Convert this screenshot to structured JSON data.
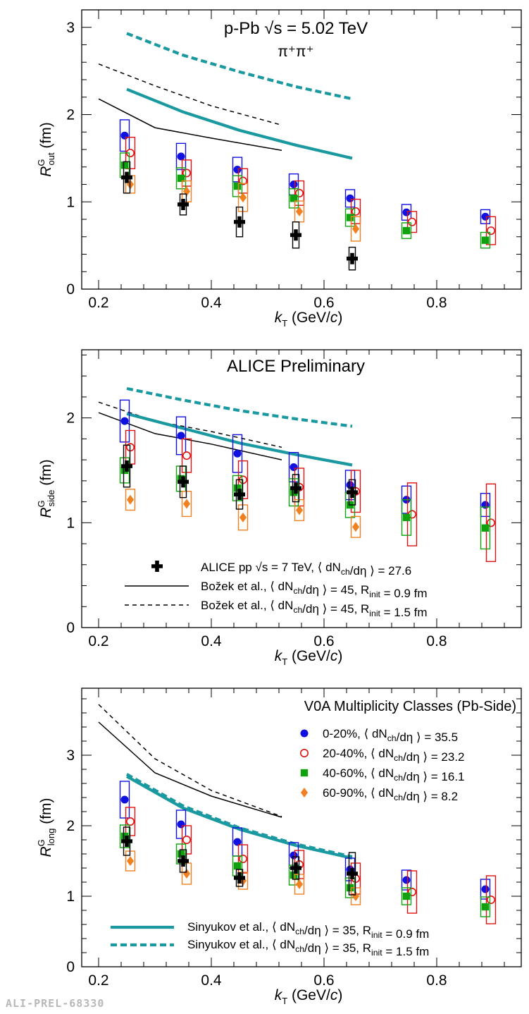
{
  "watermark": "ALI-PREL-68330",
  "legend_system": {
    "title": "V0A Multiplicity Classes (Pb-Side)",
    "entries": [
      {
        "label": "0-20%, ⟨ dN",
        "sub": "ch",
        "tail": "/dη ⟩ = 35.5",
        "marker": "circle-filled",
        "color": "#1010e0"
      },
      {
        "label": "20-40%, ⟨ dN",
        "sub": "ch",
        "tail": "/dη ⟩ = 23.2",
        "marker": "circle-open",
        "color": "#e01010"
      },
      {
        "label": "40-60%, ⟨ dN",
        "sub": "ch",
        "tail": "/dη ⟩ = 16.1",
        "marker": "square-filled",
        "color": "#10a010"
      },
      {
        "label": "60-90%, ⟨ dN",
        "sub": "ch",
        "tail": "/dη ⟩ = 8.2",
        "marker": "diamond-filled",
        "color": "#f08020"
      }
    ]
  },
  "legend_models": {
    "entries": [
      {
        "label": "ALICE pp √s = 7 TeV, ⟨ dN",
        "sub": "ch",
        "tail": "/dη ⟩ = 27.6",
        "style": "cross"
      },
      {
        "label": "Božek et al., ⟨ dN",
        "sub": "ch",
        "tail": "/dη ⟩ = 45, R",
        "sub2": "init",
        "tail2": " = 0.9 fm",
        "style": "solid"
      },
      {
        "label": "Božek et al., ⟨ dN",
        "sub": "ch",
        "tail": "/dη ⟩ = 45, R",
        "sub2": "init",
        "tail2": " = 1.5 fm",
        "style": "dashed"
      }
    ]
  },
  "legend_sinyukov": {
    "entries": [
      {
        "label": "Sinyukov et al., ⟨ dN",
        "sub": "ch",
        "tail": "/dη ⟩ = 35, R",
        "sub2": "init",
        "tail2": " = 0.9 fm",
        "style": "teal-solid"
      },
      {
        "label": "Sinyukov et al., ⟨ dN",
        "sub": "ch",
        "tail": "/dη ⟩ = 35, R",
        "sub2": "init",
        "tail2": " = 1.5 fm",
        "style": "teal-dashed"
      }
    ]
  },
  "colors": {
    "c0_20": "#1010e0",
    "c20_40": "#e01010",
    "c40_60": "#10a010",
    "c60_90": "#f08020",
    "pp": "#000000",
    "sinyukov": "#1a9aa0",
    "bozek": "#000000"
  },
  "chart_data": [
    {
      "type": "scatter",
      "id": "out",
      "title": "p-Pb √s_NN = 5.02 TeV",
      "subtitle": "π⁺π⁺",
      "ylabel": "R_out^G (fm)",
      "xlabel": "k_T (GeV/c)",
      "xlim": [
        0.17,
        0.95
      ],
      "ylim": [
        0,
        3.2
      ],
      "xticks": [
        "0.2",
        "0.4",
        "0.6",
        "0.8"
      ],
      "yticks": [
        "0",
        "1",
        "2",
        "3"
      ],
      "kT": [
        0.25,
        0.35,
        0.45,
        0.55,
        0.65,
        0.75,
        0.89
      ],
      "series": [
        {
          "name": "0-20%",
          "values": [
            1.76,
            1.52,
            1.37,
            1.2,
            1.04,
            0.88,
            0.83
          ],
          "sys": [
            0.18,
            0.15,
            0.14,
            0.12,
            0.1,
            0.09,
            0.08
          ]
        },
        {
          "name": "20-40%",
          "values": [
            1.56,
            1.33,
            1.24,
            1.1,
            0.89,
            0.77,
            0.67
          ],
          "sys": [
            0.18,
            0.15,
            0.14,
            0.14,
            0.14,
            0.12,
            0.16
          ]
        },
        {
          "name": "40-60%",
          "values": [
            1.42,
            1.27,
            1.18,
            1.04,
            0.82,
            0.67,
            0.56
          ],
          "sys": [
            0.14,
            0.12,
            0.12,
            0.11,
            0.1,
            0.09,
            0.09
          ]
        },
        {
          "name": "60-90%",
          "values": [
            1.2,
            1.12,
            1.05,
            0.89,
            0.69,
            null,
            null
          ],
          "sys": [
            0.1,
            0.12,
            0.16,
            0.12,
            0.14,
            null,
            null
          ]
        },
        {
          "name": "ALICE pp",
          "values": [
            1.28,
            0.97,
            0.77,
            0.62,
            0.35,
            null,
            null
          ],
          "sys": [
            0.18,
            0.12,
            0.17,
            0.15,
            0.13,
            null,
            null
          ]
        }
      ],
      "lines": [
        {
          "name": "Bozek 0.9",
          "style": "bozek-solid",
          "x": [
            0.2,
            0.3,
            0.4,
            0.525
          ],
          "y": [
            2.18,
            1.85,
            1.73,
            1.59
          ]
        },
        {
          "name": "Bozek 1.5",
          "style": "bozek-dashed",
          "x": [
            0.2,
            0.3,
            0.4,
            0.525
          ],
          "y": [
            2.58,
            2.33,
            2.1,
            1.88
          ]
        },
        {
          "name": "Sinyukov 0.9",
          "style": "teal-solid",
          "x": [
            0.25,
            0.35,
            0.45,
            0.55,
            0.65
          ],
          "y": [
            2.29,
            2.03,
            1.82,
            1.65,
            1.5
          ]
        },
        {
          "name": "Sinyukov 1.5",
          "style": "teal-dashed",
          "x": [
            0.25,
            0.35,
            0.45,
            0.55,
            0.65
          ],
          "y": [
            2.93,
            2.68,
            2.49,
            2.32,
            2.18
          ]
        }
      ]
    },
    {
      "type": "scatter",
      "id": "side",
      "title": "ALICE Preliminary",
      "ylabel": "R_side^G (fm)",
      "xlabel": "k_T (GeV/c)",
      "xlim": [
        0.17,
        0.95
      ],
      "ylim": [
        0,
        2.65
      ],
      "xticks": [
        "0.2",
        "0.4",
        "0.6",
        "0.8"
      ],
      "yticks": [
        "0",
        "1",
        "2"
      ],
      "kT": [
        0.25,
        0.35,
        0.45,
        0.55,
        0.65,
        0.75,
        0.89
      ],
      "series": [
        {
          "name": "0-20%",
          "values": [
            1.97,
            1.83,
            1.66,
            1.53,
            1.36,
            1.22,
            1.17
          ],
          "sys": [
            0.2,
            0.18,
            0.18,
            0.14,
            0.14,
            0.13,
            0.11
          ]
        },
        {
          "name": "20-40%",
          "values": [
            1.72,
            1.64,
            1.41,
            1.34,
            1.3,
            1.08,
            1.0
          ],
          "sys": [
            0.16,
            0.16,
            0.18,
            0.18,
            0.2,
            0.3,
            0.37
          ]
        },
        {
          "name": "40-60%",
          "values": [
            1.5,
            1.42,
            1.33,
            1.29,
            1.17,
            1.05,
            0.95
          ],
          "sys": [
            0.12,
            0.12,
            0.12,
            0.13,
            0.12,
            0.17,
            0.2
          ]
        },
        {
          "name": "60-90%",
          "values": [
            1.22,
            1.18,
            1.05,
            1.12,
            0.96,
            null,
            null
          ],
          "sys": [
            0.1,
            0.12,
            0.12,
            0.1,
            0.1,
            null,
            null
          ]
        },
        {
          "name": "ALICE pp",
          "values": [
            1.54,
            1.39,
            1.27,
            1.33,
            1.29,
            null,
            null
          ],
          "sys": [
            0.2,
            0.15,
            0.14,
            0.13,
            0.12,
            null,
            null
          ]
        }
      ],
      "lines": [
        {
          "name": "Bozek 0.9",
          "style": "bozek-solid",
          "x": [
            0.2,
            0.3,
            0.4,
            0.525
          ],
          "y": [
            2.05,
            1.85,
            1.75,
            1.6
          ]
        },
        {
          "name": "Bozek 1.5",
          "style": "bozek-dashed",
          "x": [
            0.2,
            0.3,
            0.4,
            0.525
          ],
          "y": [
            2.15,
            1.97,
            1.87,
            1.72
          ]
        },
        {
          "name": "Sinyukov 0.9",
          "style": "teal-solid",
          "x": [
            0.25,
            0.35,
            0.45,
            0.55,
            0.65
          ],
          "y": [
            2.04,
            1.9,
            1.76,
            1.65,
            1.55
          ]
        },
        {
          "name": "Sinyukov 1.5",
          "style": "teal-dashed",
          "x": [
            0.25,
            0.35,
            0.45,
            0.55,
            0.65
          ],
          "y": [
            2.28,
            2.17,
            2.07,
            1.99,
            1.92
          ]
        }
      ]
    },
    {
      "type": "scatter",
      "id": "long",
      "title": "V0A Multiplicity Classes (Pb-Side)",
      "ylabel": "R_long^G (fm)",
      "xlabel": "k_T (GeV/c)",
      "xlim": [
        0.17,
        0.95
      ],
      "ylim": [
        0,
        3.95
      ],
      "xticks": [
        "0.2",
        "0.4",
        "0.6",
        "0.8"
      ],
      "yticks": [
        "0",
        "1",
        "2",
        "3"
      ],
      "kT": [
        0.25,
        0.35,
        0.45,
        0.55,
        0.65,
        0.75,
        0.89
      ],
      "series": [
        {
          "name": "0-20%",
          "values": [
            2.37,
            2.02,
            1.77,
            1.58,
            1.38,
            1.23,
            1.1
          ],
          "sys": [
            0.26,
            0.2,
            0.2,
            0.18,
            0.16,
            0.14,
            0.14
          ]
        },
        {
          "name": "20-40%",
          "values": [
            2.06,
            1.8,
            1.53,
            1.45,
            1.25,
            1.06,
            0.95
          ],
          "sys": [
            0.2,
            0.2,
            0.2,
            0.2,
            0.22,
            0.3,
            0.34
          ]
        },
        {
          "name": "40-60%",
          "values": [
            1.85,
            1.6,
            1.43,
            1.3,
            1.12,
            1.0,
            0.85
          ],
          "sys": [
            0.16,
            0.14,
            0.14,
            0.14,
            0.14,
            0.12,
            0.14
          ]
        },
        {
          "name": "60-90%",
          "values": [
            1.5,
            1.32,
            1.22,
            1.17,
            1.0,
            null,
            null
          ],
          "sys": [
            0.14,
            0.15,
            0.12,
            0.14,
            0.12,
            null,
            null
          ]
        },
        {
          "name": "ALICE pp",
          "values": [
            1.78,
            1.5,
            1.26,
            1.4,
            1.32,
            null,
            null
          ],
          "sys": [
            0.2,
            0.16,
            0.12,
            0.16,
            0.3,
            null,
            null
          ]
        }
      ],
      "lines": [
        {
          "name": "Bozek 0.9",
          "style": "bozek-solid",
          "x": [
            0.2,
            0.3,
            0.4,
            0.525
          ],
          "y": [
            3.47,
            2.75,
            2.42,
            2.12
          ]
        },
        {
          "name": "Bozek 1.5",
          "style": "bozek-dashed",
          "x": [
            0.2,
            0.3,
            0.4,
            0.525
          ],
          "y": [
            3.72,
            2.95,
            2.5,
            2.13
          ]
        },
        {
          "name": "Sinyukov 0.9",
          "style": "teal-solid",
          "x": [
            0.25,
            0.35,
            0.45,
            0.55,
            0.65
          ],
          "y": [
            2.7,
            2.25,
            1.95,
            1.72,
            1.54
          ]
        },
        {
          "name": "Sinyukov 1.5",
          "style": "teal-dashed",
          "x": [
            0.25,
            0.35,
            0.45,
            0.55,
            0.65
          ],
          "y": [
            2.73,
            2.28,
            1.97,
            1.74,
            1.56
          ]
        }
      ]
    }
  ]
}
